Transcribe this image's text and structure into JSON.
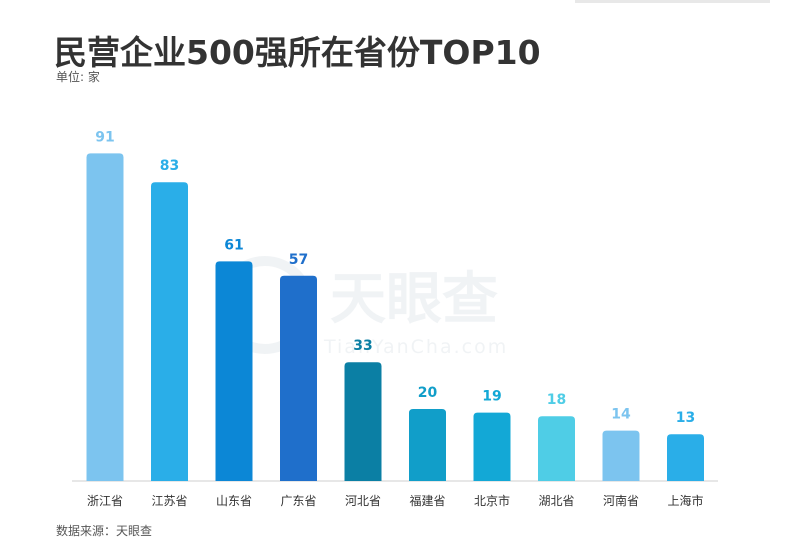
{
  "title": "民营企业500强所在省份TOP10",
  "unit_label": "单位: 家",
  "source_label": "数据来源：天眼查",
  "watermark": {
    "text": "天眼查",
    "subtext": "TianYanCha.com"
  },
  "chart_data": {
    "type": "bar",
    "title": "民营企业500强所在省份TOP10",
    "xlabel": "",
    "ylabel": "",
    "ylim": [
      0,
      100
    ],
    "grid": false,
    "categories": [
      "浙江省",
      "江苏省",
      "山东省",
      "广东省",
      "河北省",
      "福建省",
      "北京市",
      "湖北省",
      "河南省",
      "上海市"
    ],
    "values": [
      91,
      83,
      61,
      57,
      33,
      20,
      19,
      18,
      14,
      13
    ],
    "bar_colors": [
      "#7cc4ef",
      "#2aaee8",
      "#0c87d6",
      "#1f6fcb",
      "#0b7fa4",
      "#119ec9",
      "#13a8d6",
      "#4fcde6",
      "#7cc4ef",
      "#2aaee8"
    ],
    "label_colors": [
      "#7cc4ef",
      "#2aaee8",
      "#0c87d6",
      "#1f6fcb",
      "#0b7fa4",
      "#119ec9",
      "#13a8d6",
      "#4fcde6",
      "#7cc4ef",
      "#2aaee8"
    ]
  }
}
